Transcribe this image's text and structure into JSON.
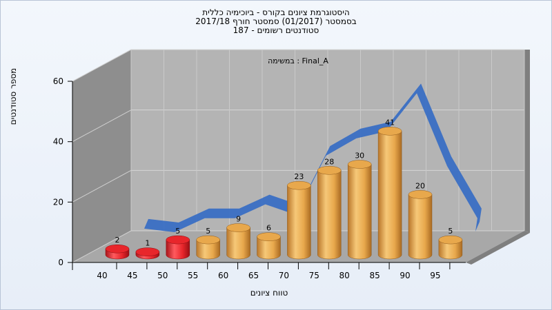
{
  "header": {
    "line1": "היסטוגרמת ציונים בקורס - ביוכימיה כללית",
    "line2": "בסמסטר  (01/2017)  סמסטר חורף 2017/18",
    "line3": "סטודנטים רשומים - 187"
  },
  "chart_data": {
    "type": "bar",
    "subtitle": "במשימה : Final_A",
    "xlabel": "טווח ציונים",
    "ylabel": "מספר סטודנטים",
    "ylim": [
      0,
      60
    ],
    "yticks": [
      0,
      20,
      40,
      60
    ],
    "xticks": [
      "40",
      "45",
      "50",
      "55",
      "60",
      "65",
      "70",
      "75",
      "80",
      "85",
      "90",
      "95"
    ],
    "categories": [
      "40-45",
      "45-50",
      "50-55",
      "55-60",
      "60-65",
      "65-70",
      "70-75",
      "75-80",
      "80-85",
      "85-90",
      "90-95",
      "95-100"
    ],
    "values": [
      2,
      1,
      5,
      5,
      9,
      6,
      23,
      28,
      30,
      41,
      20,
      5
    ],
    "bar_colors": [
      "#e8262b",
      "#e8262b",
      "#e8262b",
      "#e8a84c",
      "#e8a84c",
      "#e8a84c",
      "#e8a84c",
      "#e8a84c",
      "#e8a84c",
      "#e8a84c",
      "#e8a84c",
      "#e8a84c"
    ],
    "curve_color": "#3a6fc4",
    "grid": true
  }
}
